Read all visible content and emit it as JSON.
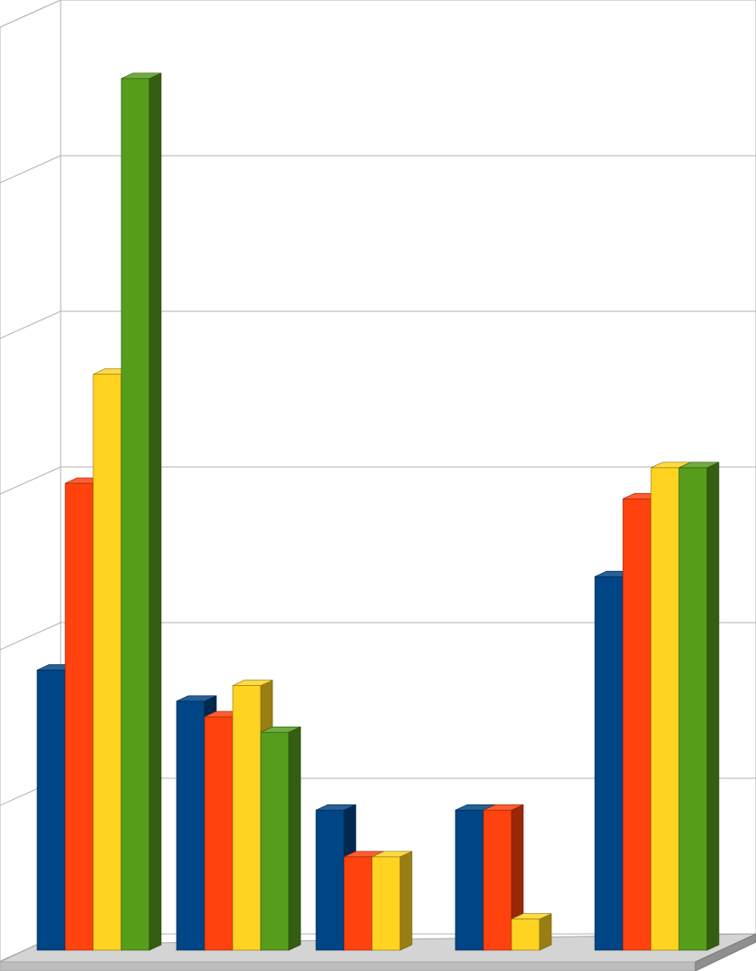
{
  "chart_data": {
    "type": "bar",
    "style": "3d-clustered-column",
    "title": "",
    "xlabel": "",
    "ylabel": "",
    "grid": true,
    "legend": "none",
    "ylim": [
      0,
      6
    ],
    "categories": [
      "",
      "",
      "",
      "",
      ""
    ],
    "series": [
      {
        "color": "#004586",
        "values": [
          1.8,
          1.6,
          0.9,
          0.9,
          2.4
        ]
      },
      {
        "color": "#ff420e",
        "values": [
          3.0,
          1.5,
          0.6,
          0.9,
          2.9
        ]
      },
      {
        "color": "#ffd320",
        "values": [
          3.7,
          1.7,
          0.6,
          0.2,
          3.1
        ]
      },
      {
        "color": "#579d1c",
        "values": [
          5.6,
          1.4,
          null,
          null,
          3.1
        ]
      }
    ]
  }
}
